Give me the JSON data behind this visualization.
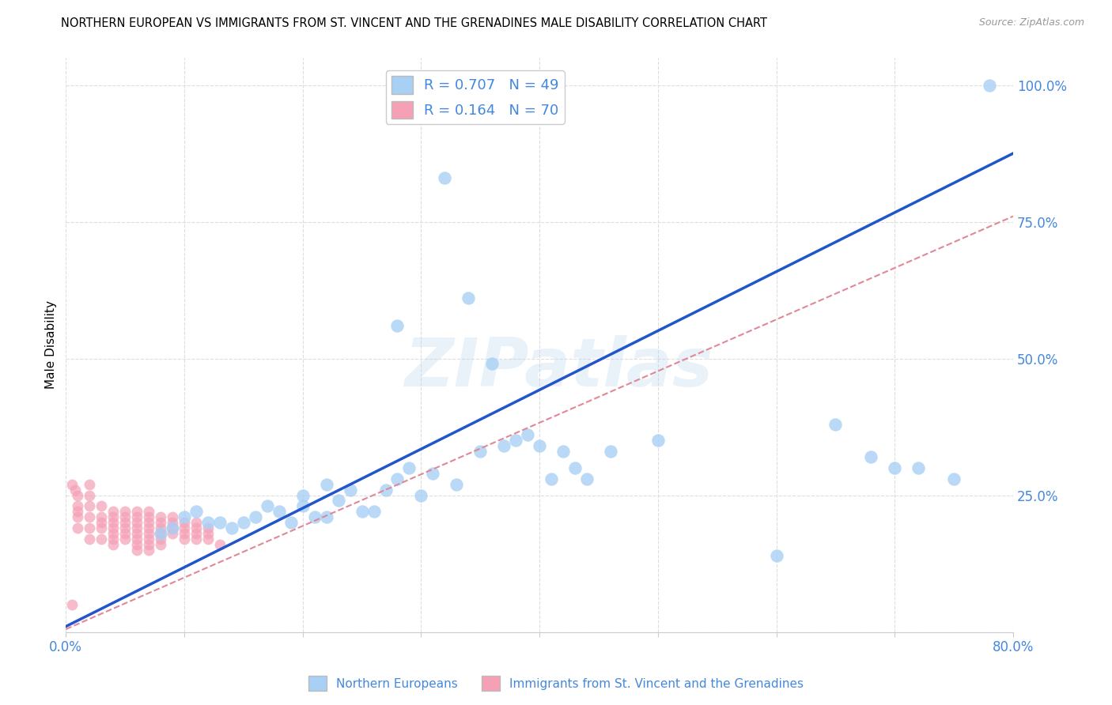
{
  "title": "NORTHERN EUROPEAN VS IMMIGRANTS FROM ST. VINCENT AND THE GRENADINES MALE DISABILITY CORRELATION CHART",
  "source": "Source: ZipAtlas.com",
  "ylabel": "Male Disability",
  "watermark": "ZIPatlas",
  "x_min": 0.0,
  "x_max": 0.8,
  "y_min": 0.0,
  "y_max": 1.05,
  "x_ticks": [
    0.0,
    0.1,
    0.2,
    0.3,
    0.4,
    0.5,
    0.6,
    0.7,
    0.8
  ],
  "x_tick_labels": [
    "0.0%",
    "",
    "",
    "",
    "",
    "",
    "",
    "",
    "80.0%"
  ],
  "y_ticks": [
    0.0,
    0.25,
    0.5,
    0.75,
    1.0
  ],
  "y_tick_labels": [
    "",
    "25.0%",
    "50.0%",
    "75.0%",
    "100.0%"
  ],
  "blue_R": 0.707,
  "blue_N": 49,
  "pink_R": 0.164,
  "pink_N": 70,
  "blue_color": "#A8D0F5",
  "pink_color": "#F5A0B5",
  "blue_line_color": "#2255CC",
  "pink_line_color": "#E08898",
  "legend_label_blue": "Northern Europeans",
  "legend_label_pink": "Immigrants from St. Vincent and the Grenadines",
  "blue_scatter_x": [
    0.32,
    0.1,
    0.15,
    0.18,
    0.2,
    0.22,
    0.23,
    0.24,
    0.25,
    0.12,
    0.14,
    0.16,
    0.17,
    0.19,
    0.21,
    0.08,
    0.09,
    0.11,
    0.13,
    0.2,
    0.22,
    0.26,
    0.27,
    0.28,
    0.29,
    0.3,
    0.31,
    0.33,
    0.35,
    0.37,
    0.38,
    0.39,
    0.4,
    0.41,
    0.43,
    0.44,
    0.28,
    0.34,
    0.36,
    0.42,
    0.46,
    0.5,
    0.6,
    0.65,
    0.68,
    0.7,
    0.72,
    0.75,
    0.78
  ],
  "blue_scatter_y": [
    0.83,
    0.21,
    0.2,
    0.22,
    0.23,
    0.21,
    0.24,
    0.26,
    0.22,
    0.2,
    0.19,
    0.21,
    0.23,
    0.2,
    0.21,
    0.18,
    0.19,
    0.22,
    0.2,
    0.25,
    0.27,
    0.22,
    0.26,
    0.28,
    0.3,
    0.25,
    0.29,
    0.27,
    0.33,
    0.34,
    0.35,
    0.36,
    0.34,
    0.28,
    0.3,
    0.28,
    0.56,
    0.61,
    0.49,
    0.33,
    0.33,
    0.35,
    0.14,
    0.38,
    0.32,
    0.3,
    0.3,
    0.28,
    1.0
  ],
  "pink_scatter_x": [
    0.005,
    0.008,
    0.01,
    0.01,
    0.01,
    0.01,
    0.01,
    0.02,
    0.02,
    0.02,
    0.02,
    0.02,
    0.03,
    0.03,
    0.03,
    0.03,
    0.03,
    0.04,
    0.04,
    0.04,
    0.04,
    0.04,
    0.04,
    0.04,
    0.05,
    0.05,
    0.05,
    0.05,
    0.05,
    0.05,
    0.06,
    0.06,
    0.06,
    0.06,
    0.06,
    0.06,
    0.06,
    0.06,
    0.07,
    0.07,
    0.07,
    0.07,
    0.07,
    0.07,
    0.07,
    0.07,
    0.08,
    0.08,
    0.08,
    0.08,
    0.08,
    0.08,
    0.09,
    0.09,
    0.09,
    0.09,
    0.1,
    0.1,
    0.1,
    0.1,
    0.11,
    0.11,
    0.11,
    0.11,
    0.12,
    0.12,
    0.12,
    0.13,
    0.005,
    0.02
  ],
  "pink_scatter_y": [
    0.27,
    0.26,
    0.25,
    0.23,
    0.22,
    0.21,
    0.19,
    0.25,
    0.23,
    0.21,
    0.19,
    0.17,
    0.23,
    0.21,
    0.2,
    0.19,
    0.17,
    0.22,
    0.21,
    0.2,
    0.19,
    0.18,
    0.17,
    0.16,
    0.22,
    0.21,
    0.2,
    0.19,
    0.18,
    0.17,
    0.22,
    0.21,
    0.2,
    0.19,
    0.18,
    0.17,
    0.16,
    0.15,
    0.22,
    0.21,
    0.2,
    0.19,
    0.18,
    0.17,
    0.16,
    0.15,
    0.21,
    0.2,
    0.19,
    0.18,
    0.17,
    0.16,
    0.21,
    0.2,
    0.19,
    0.18,
    0.2,
    0.19,
    0.18,
    0.17,
    0.2,
    0.19,
    0.18,
    0.17,
    0.19,
    0.18,
    0.17,
    0.16,
    0.05,
    0.27
  ],
  "blue_line_x": [
    0.0,
    0.8
  ],
  "blue_line_y": [
    0.01,
    0.875
  ],
  "pink_line_x": [
    0.0,
    0.8
  ],
  "pink_line_y": [
    0.005,
    0.76
  ],
  "grid_color": "#DDDDDD",
  "title_fontsize": 10.5,
  "tick_label_color": "#4488DD",
  "axis_tick_color": "#AAAAAA"
}
